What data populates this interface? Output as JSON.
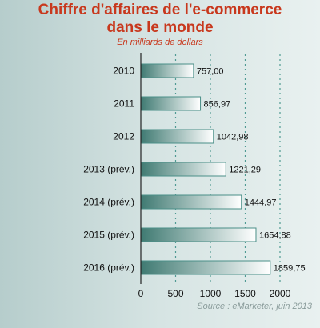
{
  "chart_data": {
    "type": "bar",
    "orientation": "horizontal",
    "title_line1": "Chiffre d'affaires de l'e-commerce",
    "title_line2": "dans le monde",
    "subtitle": "En milliards de dollars",
    "source": "Source : eMarketer, juin 2013",
    "categories": [
      "2010",
      "2011",
      "2012",
      "2013 (prév.)",
      "2014 (prév.)",
      "2015 (prév.)",
      "2016 (prév.)"
    ],
    "values": [
      757.0,
      856.97,
      1042.98,
      1221.29,
      1444.97,
      1654.88,
      1859.75
    ],
    "value_labels": [
      "757,00",
      "856,97",
      "1042,98",
      "1221,29",
      "1444,97",
      "1654,88",
      "1859,75"
    ],
    "xlim": [
      0,
      2000
    ],
    "xticks": [
      0,
      500,
      1000,
      1500,
      2000
    ],
    "grid": "vertical dashed",
    "colors": {
      "title": "#c8381d",
      "bar_dark": "#3f7a72",
      "bar_light": "#ffffff",
      "bar_border": "#4a8f88",
      "grid": "#4f9a93",
      "source": "#8a9c9b"
    }
  }
}
